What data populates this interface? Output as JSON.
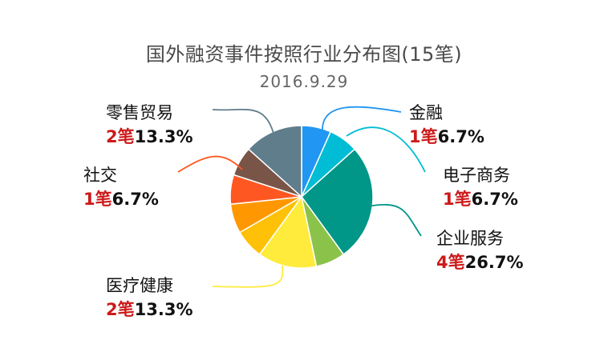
{
  "chart_data": {
    "type": "pie",
    "title": "国外融资事件按照行业分布图(15笔)",
    "subtitle": "2016.9.29",
    "slices": [
      {
        "label": "金融",
        "count": "1",
        "unit": "笔",
        "percent": "6.7%",
        "value": 1,
        "color": "#2196f3",
        "labeled": true
      },
      {
        "label": "电子商务",
        "count": "1",
        "unit": "笔",
        "percent": "6.7%",
        "value": 1,
        "color": "#00bcd4",
        "labeled": true
      },
      {
        "label": "企业服务",
        "count": "4",
        "unit": "笔",
        "percent": "26.7%",
        "value": 4,
        "color": "#009688",
        "labeled": true
      },
      {
        "label": "",
        "value": 1,
        "color": "#8bc34a",
        "labeled": false
      },
      {
        "label": "医疗健康",
        "count": "2",
        "unit": "笔",
        "percent": "13.3%",
        "value": 2,
        "color": "#ffeb3b",
        "labeled": true
      },
      {
        "label": "",
        "value": 1,
        "color": "#ffc107",
        "labeled": false
      },
      {
        "label": "",
        "value": 1,
        "color": "#ff9800",
        "labeled": false
      },
      {
        "label": "社交",
        "count": "1",
        "unit": "笔",
        "percent": "6.7%",
        "value": 1,
        "color": "#ff5722",
        "labeled": true
      },
      {
        "label": "",
        "value": 1,
        "color": "#795548",
        "labeled": false
      },
      {
        "label": "零售贸易",
        "count": "2",
        "unit": "笔",
        "percent": "13.3%",
        "value": 2,
        "color": "#607d8b",
        "labeled": true
      }
    ]
  }
}
